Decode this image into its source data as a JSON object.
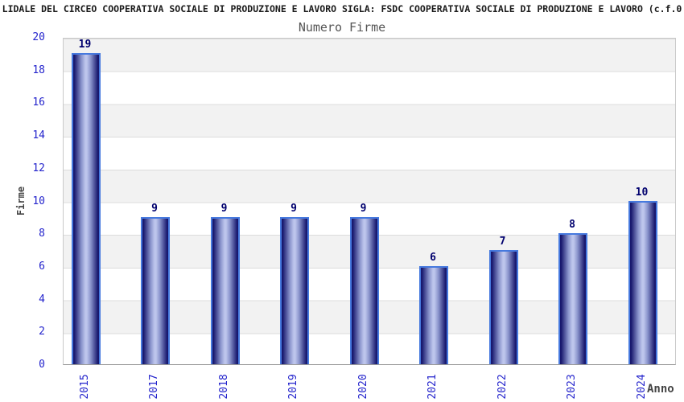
{
  "header": {
    "title": "LIDALE DEL CIRCEO COOPERATIVA SOCIALE DI PRODUZIONE E LAVORO SIGLA: FSDC COOPERATIVA SOCIALE DI PRODUZIONE E LAVORO (c.f.0",
    "subtitle": "Numero Firme"
  },
  "chart_data": {
    "type": "bar",
    "title": "Numero Firme",
    "categories": [
      "2015",
      "2017",
      "2018",
      "2019",
      "2020",
      "2021",
      "2022",
      "2023",
      "2024"
    ],
    "values": [
      19,
      9,
      9,
      9,
      9,
      6,
      7,
      8,
      10
    ],
    "xlabel": "Anno",
    "ylabel": "Firme",
    "ylim": [
      0,
      20
    ],
    "yticks": [
      0,
      2,
      4,
      6,
      8,
      10,
      12,
      14,
      16,
      18,
      20
    ],
    "legend_position": "none",
    "grid": "horizontal gridlines every 2 units with alternating shaded bands",
    "bar_labels_shown": true,
    "x_tick_rotation_degrees": 90
  },
  "colors": {
    "bar_dark": "#18186e",
    "bar_mid": "#8a94cc",
    "bar_light": "#bdc5ec",
    "bar_border": "#4679de",
    "value_label": "#00006e",
    "tick_label_blue": "#2424cc",
    "band_gray": "#f2f2f2",
    "band_white": "#ffffff",
    "gridline": "#dcdcdc",
    "axis_title_gray": "#444444",
    "subtitle_gray": "#555555",
    "title_black": "#1a1a1a"
  }
}
